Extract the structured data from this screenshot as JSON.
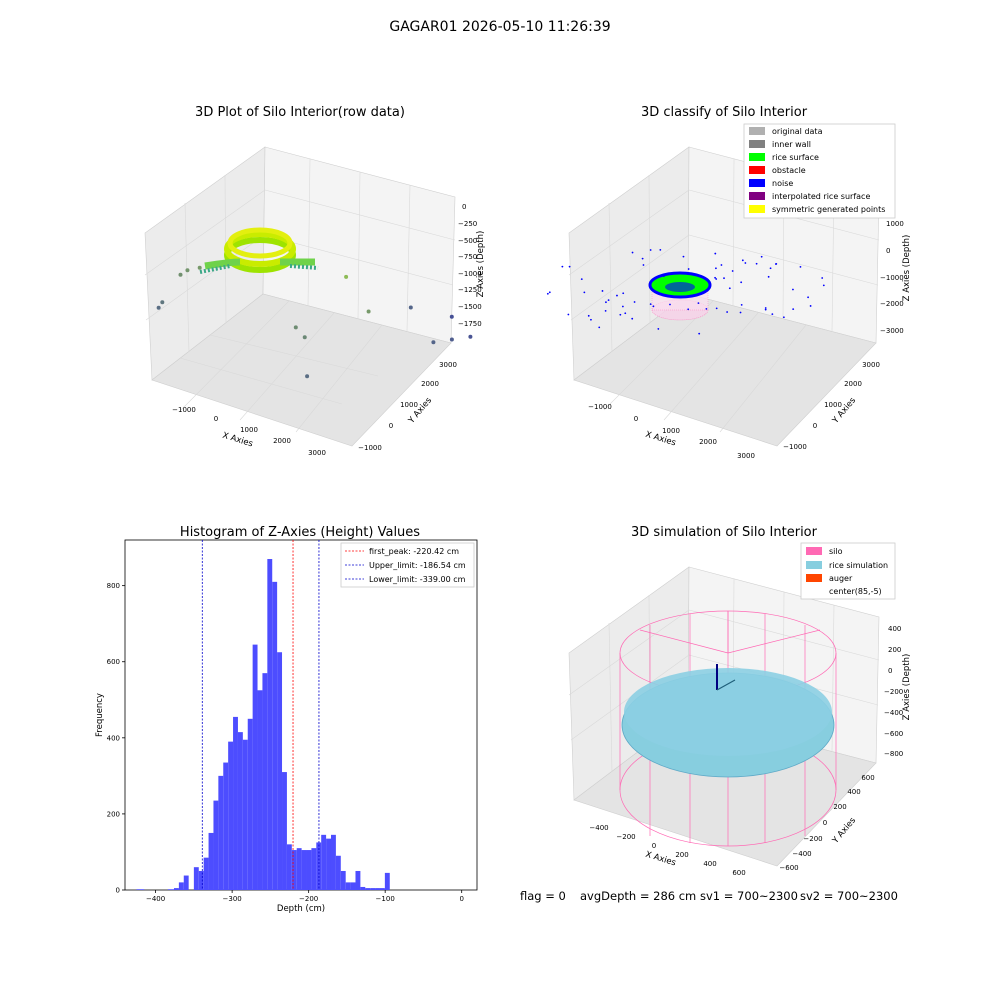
{
  "figure_title": "GAGAR01 2026-05-10 11:26:39",
  "status_line": {
    "flag": "flag = 0",
    "avg_depth": "avgDepth = 286 cm",
    "sv1": "sv1 = 700~2300",
    "sv2": "sv2 = 700~2300"
  },
  "colors": {
    "hist_bar": "#4d4dff",
    "first_peak": "#ff0000",
    "limit": "#0000cc",
    "silo": "#ff69b4",
    "rice": "#87cedf",
    "auger": "#ff4500",
    "rice_surface": "#00ff00",
    "noise": "#0000ff",
    "grid": "#d9d9d9",
    "pane": "#f2f2f2"
  },
  "chart_data": [
    {
      "type": "scatter",
      "projection": "3d",
      "title": "3D Plot of Silo Interior(row data)",
      "xlabel": "X Axies",
      "ylabel": "Y Axies",
      "zlabel": "Z Axies (Depth)",
      "xticks": [
        "−1000",
        "0",
        "1000",
        "2000",
        "3000"
      ],
      "yticks": [
        "−1000",
        "0",
        "1000",
        "2000",
        "3000"
      ],
      "zticks": [
        "0",
        "−250",
        "−500",
        "−750",
        "−1000",
        "−1250",
        "−1500",
        "−1750"
      ],
      "points": [
        {
          "x": -1250,
          "y": 300,
          "z": -1400
        },
        {
          "x": -1150,
          "y": 250,
          "z": -1300
        },
        {
          "x": -900,
          "y": 400,
          "z": -1000
        },
        {
          "x": -800,
          "y": 450,
          "z": -950
        },
        {
          "x": -600,
          "y": 500,
          "z": -900
        },
        {
          "x": 1400,
          "y": 200,
          "z": -1050
        },
        {
          "x": 1600,
          "y": 150,
          "z": -1100
        },
        {
          "x": 1800,
          "y": -100,
          "z": -1400
        },
        {
          "x": 2100,
          "y": 600,
          "z": -500
        },
        {
          "x": 2400,
          "y": 800,
          "z": -900
        },
        {
          "x": 3000,
          "y": 1800,
          "z": -1500
        },
        {
          "x": 3100,
          "y": 2200,
          "z": -1600
        },
        {
          "x": 3200,
          "y": 2600,
          "z": -1700
        },
        {
          "x": 2600,
          "y": 3000,
          "z": -1750
        },
        {
          "x": 2200,
          "y": 2400,
          "z": -1500
        }
      ]
    },
    {
      "type": "scatter",
      "projection": "3d",
      "title": "3D classify of Silo Interior",
      "xlabel": "X Axies",
      "ylabel": "Y Axies",
      "zlabel": "Z Axies (Depth)",
      "xticks": [
        "−1000",
        "0",
        "1000",
        "2000",
        "3000"
      ],
      "yticks": [
        "−1000",
        "0",
        "1000",
        "2000",
        "3000"
      ],
      "zticks": [
        "1000",
        "0",
        "−1000",
        "−2000",
        "−3000"
      ],
      "legend_position": "upper-right",
      "legend": [
        {
          "label": "original data",
          "color": "#b0b0b0"
        },
        {
          "label": "inner wall",
          "color": "#808080"
        },
        {
          "label": "rice surface",
          "color": "#00ff00"
        },
        {
          "label": "obstacle",
          "color": "#ff0000"
        },
        {
          "label": "noise",
          "color": "#0000ff"
        },
        {
          "label": "interpolated rice surface",
          "color": "#800080"
        },
        {
          "label": "symmetric generated points",
          "color": "#ffff00"
        }
      ]
    },
    {
      "type": "bar",
      "title": "Histogram of Z-Axies (Height) Values",
      "xlabel": "Depth (cm)",
      "ylabel": "Frequency",
      "xlim": [
        -440,
        20
      ],
      "ylim": [
        0,
        920
      ],
      "xticks": [
        -400,
        -300,
        -200,
        -100,
        0
      ],
      "xtick_labels": [
        "−400",
        "−300",
        "−200",
        "−100",
        "0"
      ],
      "yticks": [
        0,
        200,
        400,
        600,
        800
      ],
      "bin_start": -350,
      "bin_width": 6.4,
      "values": [
        60,
        50,
        85,
        150,
        235,
        300,
        335,
        390,
        455,
        415,
        395,
        450,
        645,
        525,
        570,
        870,
        810,
        625,
        310,
        120,
        105,
        110,
        105,
        105,
        110,
        125,
        145,
        135,
        145,
        90,
        50,
        20,
        20,
        50,
        8,
        5,
        5,
        5,
        5,
        45
      ],
      "low_bins": [
        {
          "x": -425,
          "w": 10,
          "v": 2
        },
        {
          "x": -384,
          "w": 8,
          "v": 2
        },
        {
          "x": -376,
          "w": 6.4,
          "v": 5
        },
        {
          "x": -369.6,
          "w": 6.4,
          "v": 20
        },
        {
          "x": -363.2,
          "w": 6.4,
          "v": 38
        }
      ],
      "vlines": [
        {
          "label": "first_peak: -220.42 cm",
          "x": -220.42,
          "color": "#ff0000"
        },
        {
          "label": "Upper_limit: -186.54 cm",
          "x": -186.54,
          "color": "#0000cc"
        },
        {
          "label": "Lower_limit: -339.00 cm",
          "x": -339.0,
          "color": "#0000cc"
        }
      ],
      "legend_position": "upper-right"
    },
    {
      "type": "surface",
      "projection": "3d",
      "title": "3D simulation of Silo Interior",
      "xlabel": "X Axies",
      "ylabel": "Y Axies",
      "zlabel": "Z Axies (Depth)",
      "xticks": [
        "−400",
        "−200",
        "0",
        "200",
        "400",
        "600"
      ],
      "yticks": [
        "−600",
        "−400",
        "−200",
        "0",
        "200",
        "400",
        "600"
      ],
      "zticks": [
        "400",
        "200",
        "0",
        "−200",
        "−400",
        "−600",
        "−800"
      ],
      "legend_position": "upper-right",
      "legend": [
        {
          "label": "silo",
          "color": "#ff69b4"
        },
        {
          "label": "rice simulation",
          "color": "#87cedf"
        },
        {
          "label": "auger",
          "color": "#ff4500"
        },
        {
          "label": "center(85,-5)",
          "color": ""
        }
      ]
    }
  ]
}
